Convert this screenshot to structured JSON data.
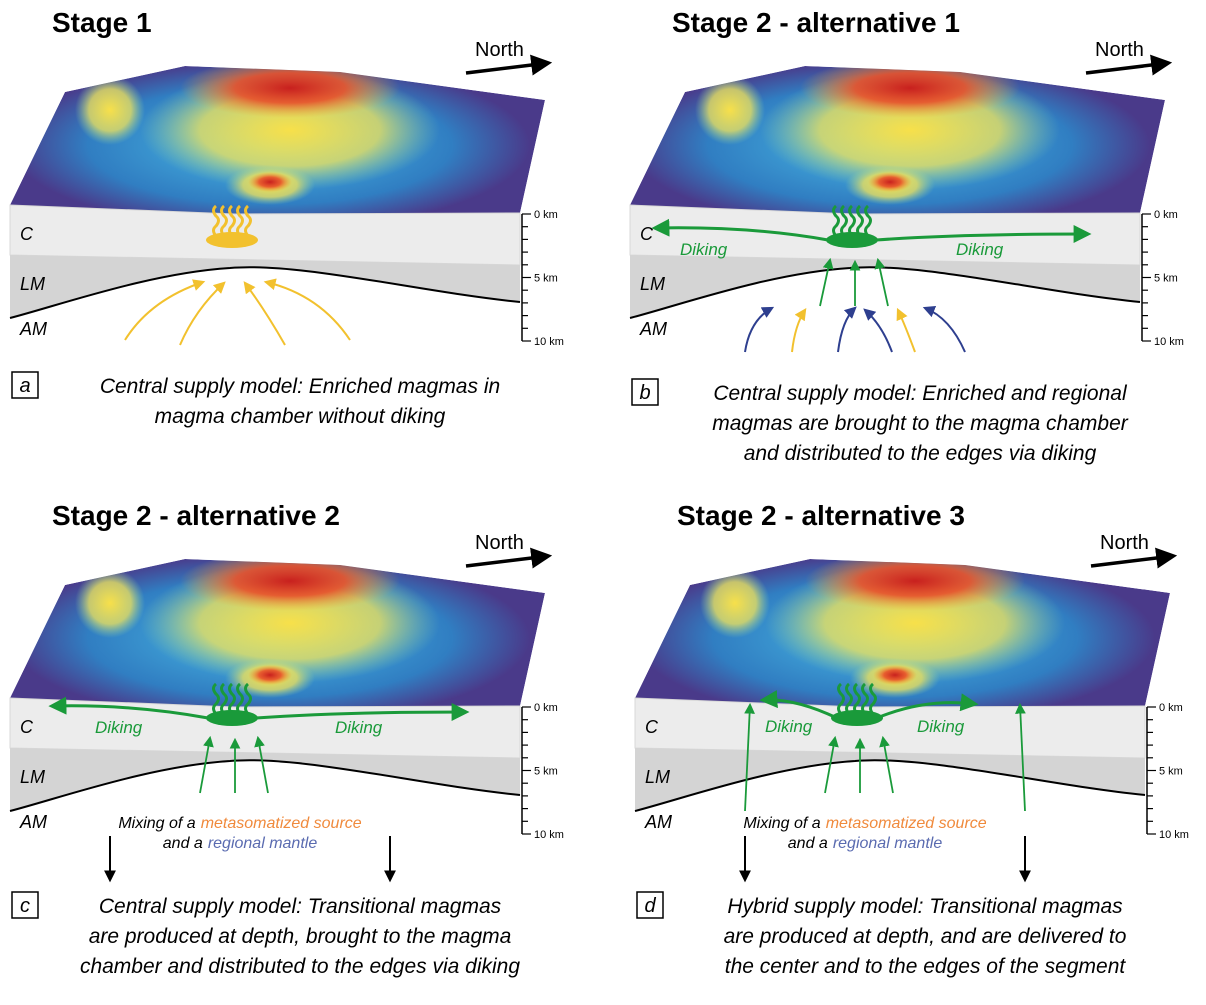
{
  "panels": [
    {
      "title": "Stage 1",
      "north": "North",
      "layers": [
        "C",
        "LM",
        "AM"
      ],
      "scale": [
        "0 km",
        "5 km",
        "10 km"
      ],
      "letter": "a",
      "caption": [
        "Central supply model: Enriched magmas in",
        "magma chamber without diking"
      ]
    },
    {
      "title": "Stage 2 - alternative 1",
      "north": "North",
      "layers": [
        "C",
        "LM",
        "AM"
      ],
      "scale": [
        "0 km",
        "5 km",
        "10 km"
      ],
      "letter": "b",
      "diking": [
        "Diking",
        "Diking"
      ],
      "caption": [
        "Central supply model: Enriched and regional",
        "magmas are brought to the magma chamber",
        "and distributed to the edges via diking"
      ]
    },
    {
      "title": "Stage 2 - alternative 2",
      "north": "North",
      "layers": [
        "C",
        "LM",
        "AM"
      ],
      "scale": [
        "0 km",
        "5 km",
        "10 km"
      ],
      "letter": "c",
      "diking": [
        "Diking",
        "Diking"
      ],
      "mixing": [
        [
          "Mixing of a",
          "metasomatized source"
        ],
        [
          "and a",
          "regional mantle"
        ]
      ],
      "caption": [
        "Central supply model: Transitional magmas",
        "are produced at depth, brought to the magma",
        "chamber and distributed to the edges via diking"
      ]
    },
    {
      "title": "Stage 2 - alternative 3",
      "north": "North",
      "layers": [
        "C",
        "LM",
        "AM"
      ],
      "scale": [
        "0 km",
        "5 km",
        "10 km"
      ],
      "letter": "d",
      "diking": [
        "Diking",
        "Diking"
      ],
      "mixing": [
        [
          "Mixing of a",
          "metasomatized source"
        ],
        [
          "and a",
          "regional mantle"
        ]
      ],
      "caption": [
        "Hybrid supply model: Transitional magmas",
        "are produced at depth, and are delivered to",
        "the center and to the edges of the segment"
      ]
    }
  ]
}
